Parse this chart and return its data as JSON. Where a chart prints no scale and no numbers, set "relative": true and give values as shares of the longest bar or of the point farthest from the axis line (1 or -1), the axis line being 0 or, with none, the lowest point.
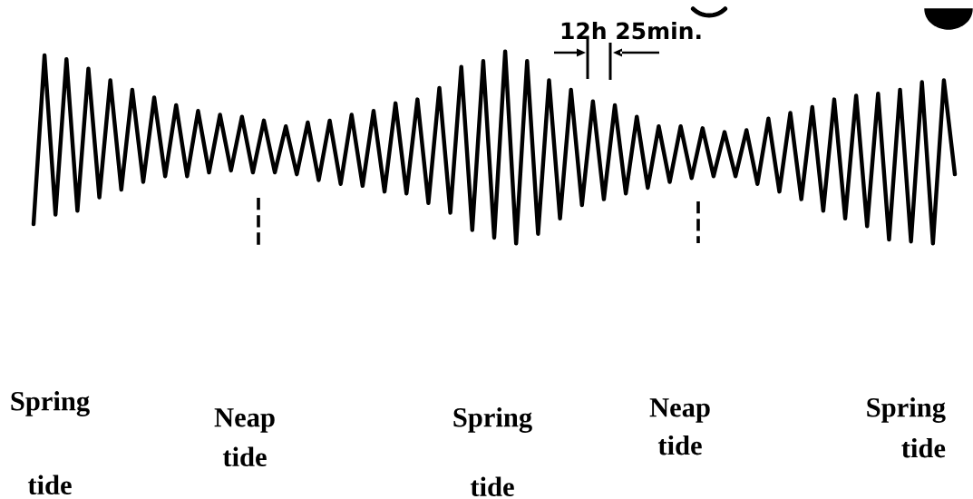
{
  "chart_data": {
    "type": "line",
    "relative": true,
    "color": "#000000",
    "marker": "none",
    "line_style": "solid",
    "categories": [
      null,
      null,
      null,
      null,
      null,
      null,
      null,
      null,
      null,
      null,
      null,
      null,
      null,
      null,
      null,
      null,
      null,
      null,
      null,
      null,
      null,
      null,
      null,
      null,
      null,
      null,
      null,
      null,
      null,
      null,
      null,
      null,
      null,
      null,
      null,
      null,
      null,
      null,
      null,
      null,
      null,
      null,
      null,
      null,
      null,
      null,
      null,
      null,
      null,
      null,
      null,
      null,
      null,
      null,
      null,
      null,
      null,
      null,
      null,
      null,
      null,
      null,
      null,
      null,
      null,
      null,
      null,
      null,
      null,
      null,
      null,
      null,
      null,
      null,
      null,
      null,
      null,
      null,
      null,
      null,
      null,
      null,
      null,
      null,
      null
    ],
    "values": [
      0.1,
      0.98,
      0.15,
      0.96,
      0.17,
      0.91,
      0.24,
      0.85,
      0.28,
      0.8,
      0.32,
      0.76,
      0.35,
      0.72,
      0.35,
      0.69,
      0.37,
      0.67,
      0.38,
      0.66,
      0.37,
      0.64,
      0.37,
      0.61,
      0.36,
      0.63,
      0.33,
      0.64,
      0.31,
      0.67,
      0.3,
      0.69,
      0.27,
      0.73,
      0.26,
      0.75,
      0.21,
      0.81,
      0.16,
      0.92,
      0.07,
      0.95,
      0.03,
      1.0,
      0.0,
      0.95,
      0.05,
      0.85,
      0.13,
      0.8,
      0.2,
      0.74,
      0.23,
      0.72,
      0.26,
      0.66,
      0.29,
      0.61,
      0.32,
      0.61,
      0.34,
      0.6,
      0.35,
      0.58,
      0.35,
      0.59,
      0.31,
      0.65,
      0.27,
      0.68,
      0.23,
      0.71,
      0.17,
      0.75,
      0.13,
      0.77,
      0.09,
      0.78,
      0.02,
      0.8,
      0.01,
      0.84,
      0.0,
      0.85,
      0.36
    ],
    "annotations": [
      "12h 25min.",
      "Spring\ntide",
      "Neap\ntide",
      "Spring\ntide",
      "Neap\ntide",
      "Spring\ntide"
    ]
  }
}
